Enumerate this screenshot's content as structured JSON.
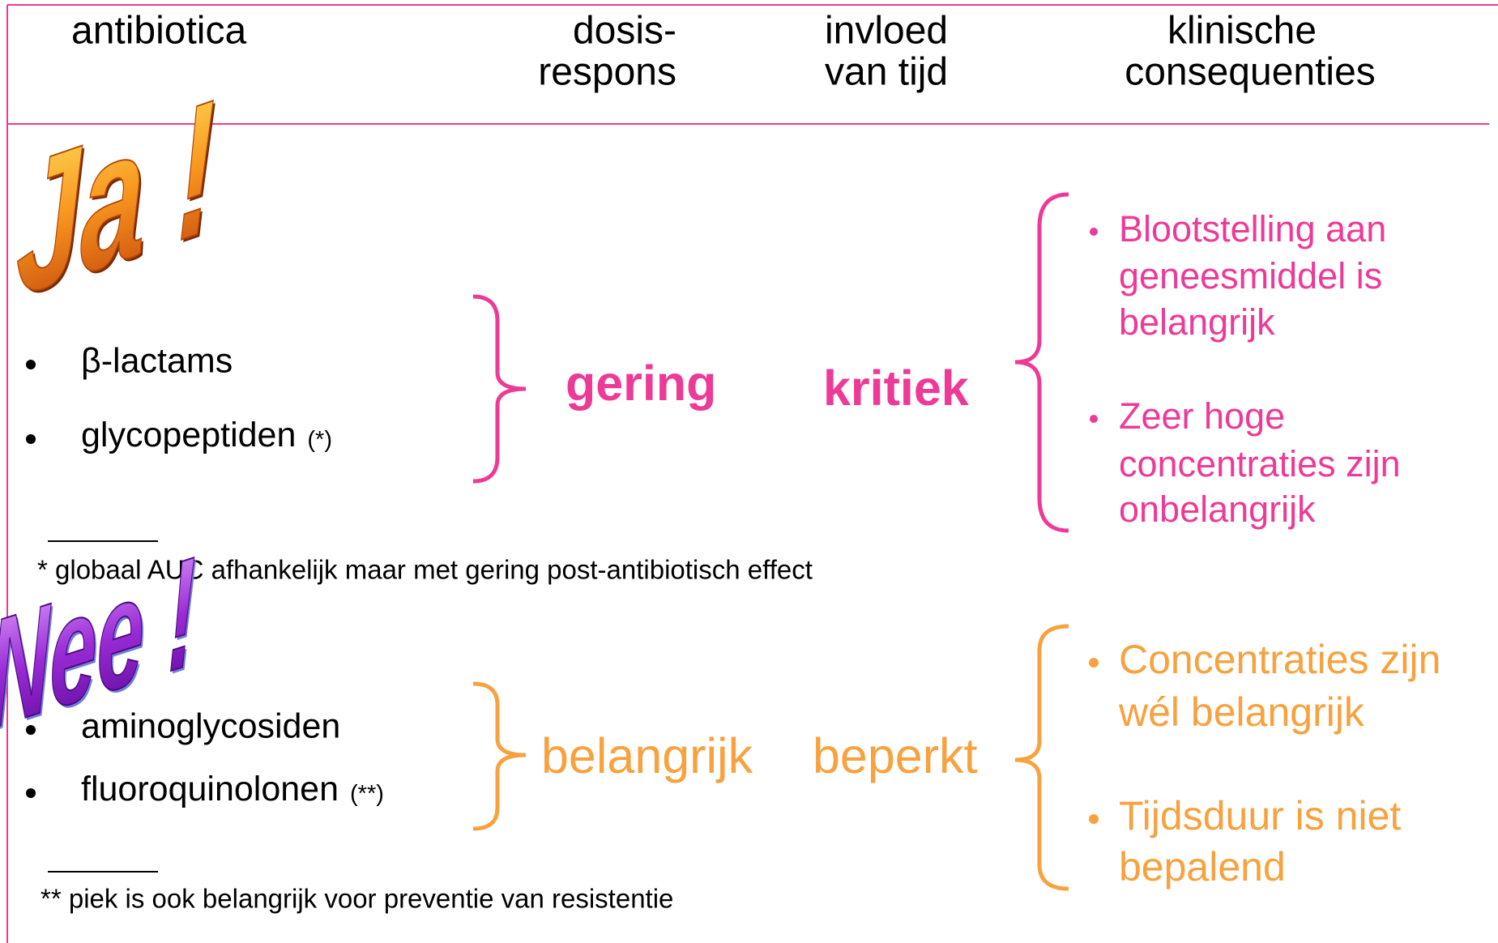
{
  "header": {
    "columns": [
      [
        "antibiotica"
      ],
      [
        "dosis-",
        "respons"
      ],
      [
        "invloed",
        "van tijd"
      ],
      [
        "klinische",
        "consequenties"
      ]
    ]
  },
  "groups": [
    {
      "badge": "Ja !",
      "items": [
        {
          "name": "β-lactams"
        },
        {
          "name": "glycopeptiden",
          "note": "(*)"
        }
      ],
      "dose_response": "gering",
      "time_influence": "kritiek",
      "consequences": [
        [
          "Blootstelling aan",
          "geneesmiddel is",
          "belangrijk"
        ],
        [
          "Zeer hoge",
          "concentraties zijn",
          "onbelangrijk"
        ]
      ],
      "footnote": "* globaal AUC afhankelijk maar met gering post-antibiotisch effect"
    },
    {
      "badge": "Nee !",
      "items": [
        {
          "name": "aminoglycosiden"
        },
        {
          "name": "fluoroquinolonen",
          "note": "(**)"
        }
      ],
      "dose_response": "belangrijk",
      "time_influence": "beperkt",
      "consequences": [
        [
          "Concentraties zijn",
          "wél belangrijk"
        ],
        [
          "Tijdsduur is niet",
          "bepalend"
        ]
      ],
      "footnote": "** piek is ook belangrijk voor preventie van resistentie"
    }
  ]
}
